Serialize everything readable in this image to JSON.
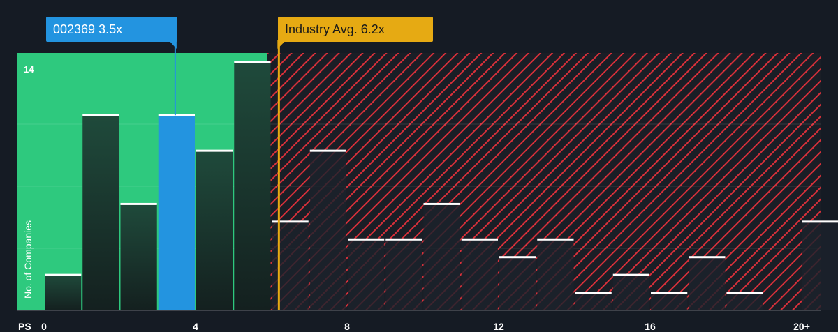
{
  "chart_data": {
    "type": "bar",
    "xlabel": "PS",
    "ylabel": "No. of Companies",
    "x_ticks": [
      "0",
      "4",
      "8",
      "12",
      "16",
      "20+"
    ],
    "y_ticks": [
      "14"
    ],
    "ylim": [
      0,
      14
    ],
    "bin_width": 1,
    "bins_x_start": [
      0,
      1,
      2,
      3,
      4,
      5,
      6,
      7,
      8,
      9,
      10,
      11,
      12,
      13,
      14,
      15,
      16,
      17,
      18,
      19,
      20
    ],
    "values": [
      2,
      11,
      6,
      11,
      9,
      14,
      5,
      9,
      4,
      4,
      6,
      4,
      3,
      4,
      1,
      2,
      1,
      3,
      1,
      0,
      5
    ],
    "company": {
      "label": "002369 3.5x",
      "value": 3.5,
      "bin_index": 3
    },
    "industry_avg": {
      "label": "Industry Avg. 6.2x",
      "value": 6.2
    },
    "colors": {
      "background": "#151b24",
      "fair_zone": "#2ec97e",
      "fair_bar": "#1f4a3b",
      "company_bar": "#2394e0",
      "over_zone": "#d9303a",
      "industry_line": "#e6aa13",
      "bar_cap": "#ffffff"
    }
  }
}
